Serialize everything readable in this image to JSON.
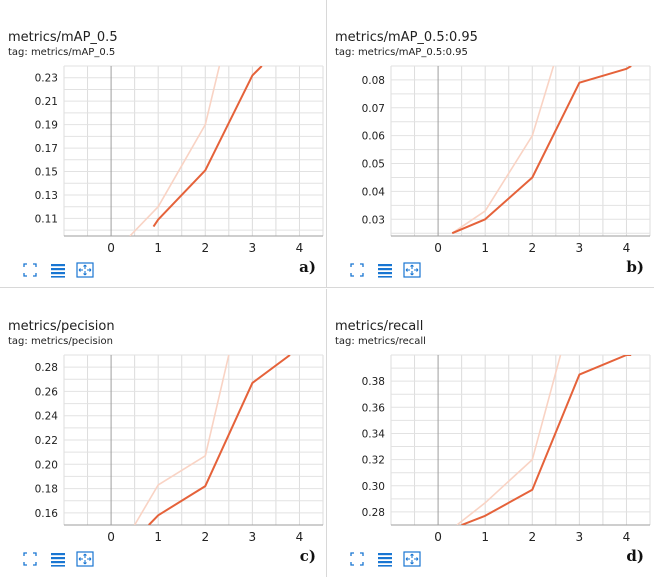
{
  "chart_data": [
    {
      "type": "line",
      "title": "metrics/mAP_0.5",
      "tag": "tag: metrics/mAP_0.5",
      "panel_label": "a)",
      "xlim": [
        -1,
        4.5
      ],
      "ylim": [
        0.095,
        0.24
      ],
      "xticks": [
        "0",
        "1",
        "2",
        "3",
        "4"
      ],
      "yticks": [
        "0.11",
        "0.13",
        "0.15",
        "0.17",
        "0.19",
        "0.21",
        "0.23"
      ],
      "series": [
        {
          "role": "raw",
          "color": "#f9d3c4",
          "x": [
            0.4,
            1,
            2,
            2.3
          ],
          "y": [
            0.095,
            0.12,
            0.19,
            0.24
          ]
        },
        {
          "role": "smoothed",
          "color": "#e5623a",
          "x": [
            0.9,
            1,
            2,
            3,
            3.2
          ],
          "y": [
            0.103,
            0.109,
            0.151,
            0.232,
            0.24
          ]
        }
      ]
    },
    {
      "type": "line",
      "title": "metrics/mAP_0.5:0.95",
      "tag": "tag: metrics/mAP_0.5:0.95",
      "panel_label": "b)",
      "xlim": [
        -1,
        4.5
      ],
      "ylim": [
        0.024,
        0.085
      ],
      "xticks": [
        "0",
        "1",
        "2",
        "3",
        "4"
      ],
      "yticks": [
        "0.03",
        "0.04",
        "0.05",
        "0.06",
        "0.07",
        "0.08"
      ],
      "series": [
        {
          "role": "raw",
          "color": "#f9d3c4",
          "x": [
            0.3,
            1,
            2,
            2.45
          ],
          "y": [
            0.025,
            0.033,
            0.06,
            0.085
          ]
        },
        {
          "role": "smoothed",
          "color": "#e5623a",
          "x": [
            0.3,
            1,
            2,
            3,
            4,
            4.1
          ],
          "y": [
            0.025,
            0.03,
            0.045,
            0.079,
            0.084,
            0.085
          ]
        }
      ]
    },
    {
      "type": "line",
      "title": "metrics/pecision",
      "tag": "tag: metrics/pecision",
      "panel_label": "c)",
      "xlim": [
        -1,
        4.5
      ],
      "ylim": [
        0.15,
        0.29
      ],
      "xticks": [
        "0",
        "1",
        "2",
        "3",
        "4"
      ],
      "yticks": [
        "0.16",
        "0.18",
        "0.20",
        "0.22",
        "0.24",
        "0.26",
        "0.28"
      ],
      "series": [
        {
          "role": "raw",
          "color": "#f9d3c4",
          "x": [
            0.5,
            1,
            2,
            2.5
          ],
          "y": [
            0.15,
            0.183,
            0.207,
            0.29
          ]
        },
        {
          "role": "smoothed",
          "color": "#e5623a",
          "x": [
            0.8,
            1,
            2,
            3,
            3.8
          ],
          "y": [
            0.15,
            0.158,
            0.182,
            0.267,
            0.29
          ]
        }
      ]
    },
    {
      "type": "line",
      "title": "metrics/recall",
      "tag": "tag: metrics/recall",
      "panel_label": "d)",
      "xlim": [
        -1,
        4.5
      ],
      "ylim": [
        0.27,
        0.4
      ],
      "xticks": [
        "0",
        "1",
        "2",
        "3",
        "4"
      ],
      "yticks": [
        "0.28",
        "0.30",
        "0.32",
        "0.34",
        "0.36",
        "0.38"
      ],
      "series": [
        {
          "role": "raw",
          "color": "#f9d3c4",
          "x": [
            0.4,
            1,
            2,
            2.6
          ],
          "y": [
            0.27,
            0.287,
            0.32,
            0.4
          ]
        },
        {
          "role": "smoothed",
          "color": "#e5623a",
          "x": [
            0.5,
            1,
            2,
            3,
            4,
            4.1
          ],
          "y": [
            0.27,
            0.277,
            0.297,
            0.385,
            0.4,
            0.4
          ]
        }
      ]
    }
  ],
  "toolbar": {
    "icons": [
      "fullscreen-icon",
      "toggle-log-scale-icon",
      "fit-domain-icon"
    ],
    "accent_color": "#1976d2"
  }
}
